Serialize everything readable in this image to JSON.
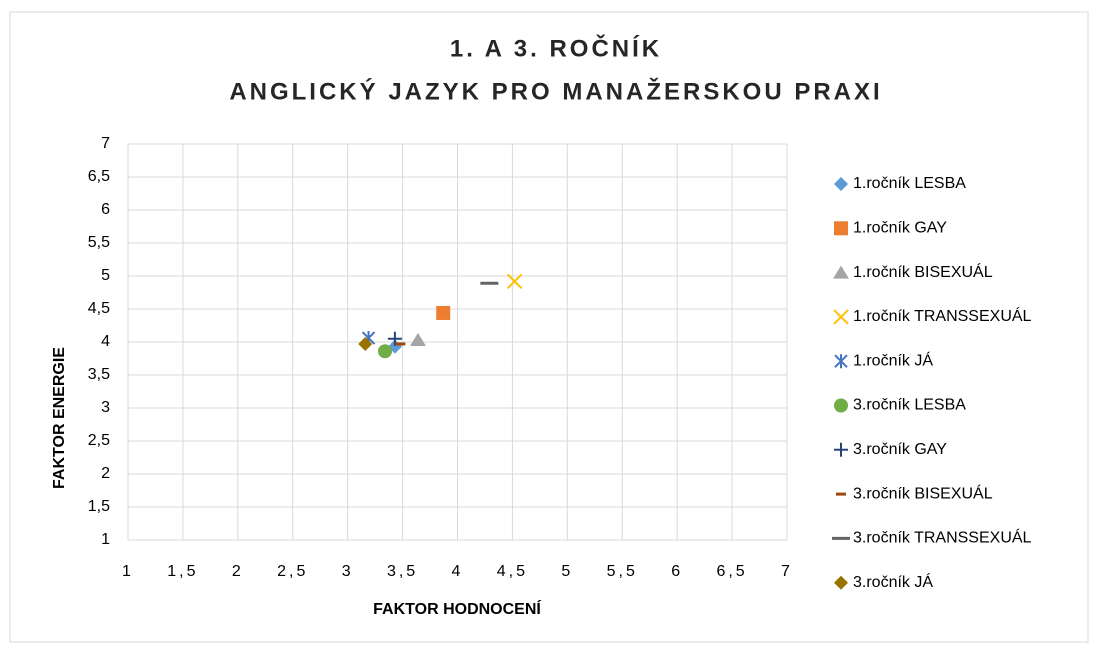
{
  "chart_data": {
    "type": "scatter",
    "title": "1. A 3. ROČNÍK",
    "subtitle": "ANGLICKÝ JAZYK PRO MANAŽERSKOU PRAXI",
    "x_label": "FAKTOR HODNOCENÍ",
    "y_label": "FAKTOR ENERGIE",
    "xlim": [
      1,
      7
    ],
    "ylim": [
      1,
      7
    ],
    "xticks": [
      1,
      {
        "value": 1.5,
        "label": "1,5"
      },
      2,
      {
        "value": 2.5,
        "label": "2,5"
      },
      3,
      {
        "value": 3.5,
        "label": "3,5"
      },
      4,
      {
        "value": 4.5,
        "label": "4,5"
      },
      5,
      {
        "value": 5.5,
        "label": "5,5"
      },
      6,
      {
        "value": 6.5,
        "label": "6,5"
      },
      7
    ],
    "yticks": [
      1,
      {
        "value": 1.5,
        "label": "1,5"
      },
      2,
      {
        "value": 2.5,
        "label": "2,5"
      },
      3,
      {
        "value": 3.5,
        "label": "3,5"
      },
      4,
      {
        "value": 4.5,
        "label": "4,5"
      },
      5,
      {
        "value": 5.5,
        "label": "5,5"
      },
      6,
      {
        "value": 6.5,
        "label": "6,5"
      },
      7
    ],
    "grid": true,
    "legend": "right",
    "series": [
      {
        "name": "1.ročník LESBA",
        "color": "#5b9bd5",
        "marker": "diamond",
        "x": [
          3.43
        ],
        "values": [
          3.93
        ]
      },
      {
        "name": "1.ročník GAY",
        "color": "#ed7d31",
        "marker": "square",
        "x": [
          3.87
        ],
        "values": [
          4.44
        ]
      },
      {
        "name": "1.ročník BISEXUÁL",
        "color": "#a5a5a5",
        "marker": "triangle",
        "x": [
          3.64
        ],
        "values": [
          4.03
        ]
      },
      {
        "name": "1.ročník TRANSSEXUÁL",
        "color": "#ffc000",
        "marker": "x",
        "x": [
          4.52
        ],
        "values": [
          4.92
        ]
      },
      {
        "name": "1.ročník JÁ",
        "color": "#4472c4",
        "marker": "star",
        "x": [
          3.19
        ],
        "values": [
          4.06
        ]
      },
      {
        "name": "3.ročník LESBA",
        "color": "#70ad47",
        "marker": "circle",
        "x": [
          3.34
        ],
        "values": [
          3.86
        ]
      },
      {
        "name": "3.ročník GAY",
        "color": "#264478",
        "marker": "plus",
        "x": [
          3.43
        ],
        "values": [
          4.05
        ]
      },
      {
        "name": "3.ročník BISEXUÁL",
        "color": "#9e480e",
        "marker": "dash",
        "x": [
          3.48
        ],
        "values": [
          3.97
        ]
      },
      {
        "name": "3.ročník TRANSSEXUÁL",
        "color": "#636363",
        "marker": "longdash",
        "x": [
          4.29
        ],
        "values": [
          4.89
        ]
      },
      {
        "name": "3.ročník JÁ",
        "color": "#997300",
        "marker": "diamond",
        "x": [
          3.16
        ],
        "values": [
          3.97
        ]
      }
    ]
  }
}
